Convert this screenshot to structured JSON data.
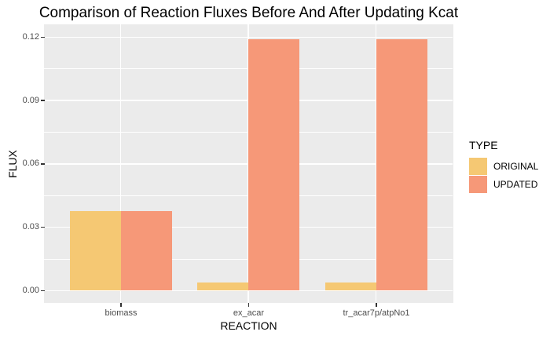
{
  "title": "Comparison of Reaction Fluxes Before And After Updating Kcat",
  "legend": {
    "title": "TYPE",
    "position": "right"
  },
  "colors": {
    "original": "#F5C873",
    "updated": "#F69878",
    "panel_bg": "#EBEBEB",
    "grid": "#FFFFFF",
    "tick_mark": "#333333",
    "tick_label": "#4D4D4D",
    "text": "#000000"
  },
  "chart_data": {
    "type": "bar",
    "grouped": true,
    "title": "Comparison of Reaction Fluxes Before And After Updating Kcat",
    "xlabel": "REACTION",
    "ylabel": "FLUX",
    "categories": [
      "biomass",
      "ex_acar",
      "tr_acar7p/atpNo1"
    ],
    "series": [
      {
        "name": "ORIGINAL",
        "color": "#F5C873",
        "values": [
          0.0377,
          0.004,
          0.004
        ]
      },
      {
        "name": "UPDATED",
        "color": "#F69878",
        "values": [
          0.0377,
          0.119,
          0.119
        ]
      }
    ],
    "ylim": [
      0,
      0.12
    ],
    "yticks": [
      0,
      0.03,
      0.06,
      0.09,
      0.12
    ],
    "ytick_labels": [
      "0.00",
      "0.03",
      "0.06",
      "0.09",
      "0.12"
    ],
    "yticks_minor": [
      0.015,
      0.045,
      0.075,
      0.105
    ],
    "grid": true,
    "legend_position": "right",
    "panel_background": "ggplot-grey"
  }
}
